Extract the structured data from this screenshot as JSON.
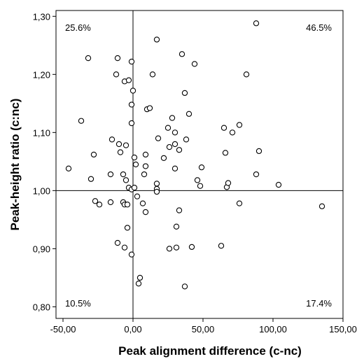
{
  "chart_data": {
    "type": "scatter",
    "title": "",
    "xlabel": "Peak alignment difference (c-nc)",
    "ylabel": "Peak-height ratio (c:nc)",
    "xlim": [
      -55,
      150
    ],
    "ylim": [
      0.78,
      1.31
    ],
    "x_ticks": [
      -50,
      0,
      50,
      100,
      150
    ],
    "x_tick_labels": [
      "-50,00",
      "0,00",
      "50,00",
      "100,00",
      "150,00"
    ],
    "y_ticks": [
      0.8,
      0.9,
      1.0,
      1.1,
      1.2,
      1.3
    ],
    "y_tick_labels": [
      "0,80",
      "0,90",
      "1,00",
      "1,10",
      "1,20",
      "1,30"
    ],
    "reference_lines": {
      "x": 0,
      "y": 1.0
    },
    "grid": false,
    "legend": "none",
    "quadrant_labels": {
      "top_left": "25.6%",
      "top_right": "46.5%",
      "bottom_left": "10.5%",
      "bottom_right": "17.4%"
    },
    "marker_color": "#000000",
    "points": [
      {
        "x": -32,
        "y": 1.228
      },
      {
        "x": -37,
        "y": 1.12
      },
      {
        "x": -46,
        "y": 1.038
      },
      {
        "x": -28,
        "y": 1.062
      },
      {
        "x": -30,
        "y": 1.02
      },
      {
        "x": -27,
        "y": 0.982
      },
      {
        "x": -24,
        "y": 0.976
      },
      {
        "x": -16,
        "y": 0.98
      },
      {
        "x": -16,
        "y": 1.028
      },
      {
        "x": -15,
        "y": 1.088
      },
      {
        "x": -12,
        "y": 1.2
      },
      {
        "x": -11,
        "y": 1.228
      },
      {
        "x": -6,
        "y": 1.188
      },
      {
        "x": -3,
        "y": 1.19
      },
      {
        "x": -1,
        "y": 1.222
      },
      {
        "x": 0,
        "y": 1.172
      },
      {
        "x": -1,
        "y": 1.148
      },
      {
        "x": -1,
        "y": 1.116
      },
      {
        "x": -5,
        "y": 1.078
      },
      {
        "x": -10,
        "y": 1.08
      },
      {
        "x": -9,
        "y": 1.066
      },
      {
        "x": -7,
        "y": 1.028
      },
      {
        "x": -5,
        "y": 1.018
      },
      {
        "x": -3,
        "y": 1.005
      },
      {
        "x": -7,
        "y": 0.98
      },
      {
        "x": -6,
        "y": 0.976
      },
      {
        "x": -4,
        "y": 0.976
      },
      {
        "x": -1,
        "y": 1.002
      },
      {
        "x": 1,
        "y": 1.005
      },
      {
        "x": 2,
        "y": 1.045
      },
      {
        "x": 1,
        "y": 1.057
      },
      {
        "x": 3,
        "y": 0.99
      },
      {
        "x": -4,
        "y": 0.936
      },
      {
        "x": -11,
        "y": 0.91
      },
      {
        "x": -6,
        "y": 0.902
      },
      {
        "x": -1,
        "y": 0.89
      },
      {
        "x": 5,
        "y": 0.85
      },
      {
        "x": 4,
        "y": 0.84
      },
      {
        "x": 7,
        "y": 0.978
      },
      {
        "x": 9,
        "y": 0.963
      },
      {
        "x": 8,
        "y": 1.028
      },
      {
        "x": 9,
        "y": 1.062
      },
      {
        "x": 9,
        "y": 1.042
      },
      {
        "x": 10,
        "y": 1.14
      },
      {
        "x": 12,
        "y": 1.142
      },
      {
        "x": 14,
        "y": 1.2
      },
      {
        "x": 17,
        "y": 1.26
      },
      {
        "x": 18,
        "y": 1.09
      },
      {
        "x": 17,
        "y": 1.012
      },
      {
        "x": 17,
        "y": 1.003
      },
      {
        "x": 17,
        "y": 0.998
      },
      {
        "x": 22,
        "y": 1.056
      },
      {
        "x": 25,
        "y": 1.108
      },
      {
        "x": 26,
        "y": 1.075
      },
      {
        "x": 28,
        "y": 1.125
      },
      {
        "x": 30,
        "y": 1.08
      },
      {
        "x": 30,
        "y": 1.1
      },
      {
        "x": 30,
        "y": 1.038
      },
      {
        "x": 33,
        "y": 1.07
      },
      {
        "x": 35,
        "y": 1.235
      },
      {
        "x": 37,
        "y": 1.168
      },
      {
        "x": 38,
        "y": 1.088
      },
      {
        "x": 40,
        "y": 1.132
      },
      {
        "x": 44,
        "y": 1.218
      },
      {
        "x": 46,
        "y": 1.018
      },
      {
        "x": 48,
        "y": 1.008
      },
      {
        "x": 49,
        "y": 1.04
      },
      {
        "x": 33,
        "y": 0.966
      },
      {
        "x": 31,
        "y": 0.938
      },
      {
        "x": 31,
        "y": 0.902
      },
      {
        "x": 26,
        "y": 0.9
      },
      {
        "x": 42,
        "y": 0.903
      },
      {
        "x": 37,
        "y": 0.835
      },
      {
        "x": 63,
        "y": 0.905
      },
      {
        "x": 65,
        "y": 1.108
      },
      {
        "x": 66,
        "y": 1.065
      },
      {
        "x": 67,
        "y": 1.006
      },
      {
        "x": 68,
        "y": 1.013
      },
      {
        "x": 71,
        "y": 1.1
      },
      {
        "x": 76,
        "y": 1.113
      },
      {
        "x": 81,
        "y": 1.2
      },
      {
        "x": 88,
        "y": 1.288
      },
      {
        "x": 90,
        "y": 1.068
      },
      {
        "x": 88,
        "y": 1.028
      },
      {
        "x": 76,
        "y": 0.978
      },
      {
        "x": 104,
        "y": 1.01
      },
      {
        "x": 135,
        "y": 0.973
      }
    ]
  }
}
